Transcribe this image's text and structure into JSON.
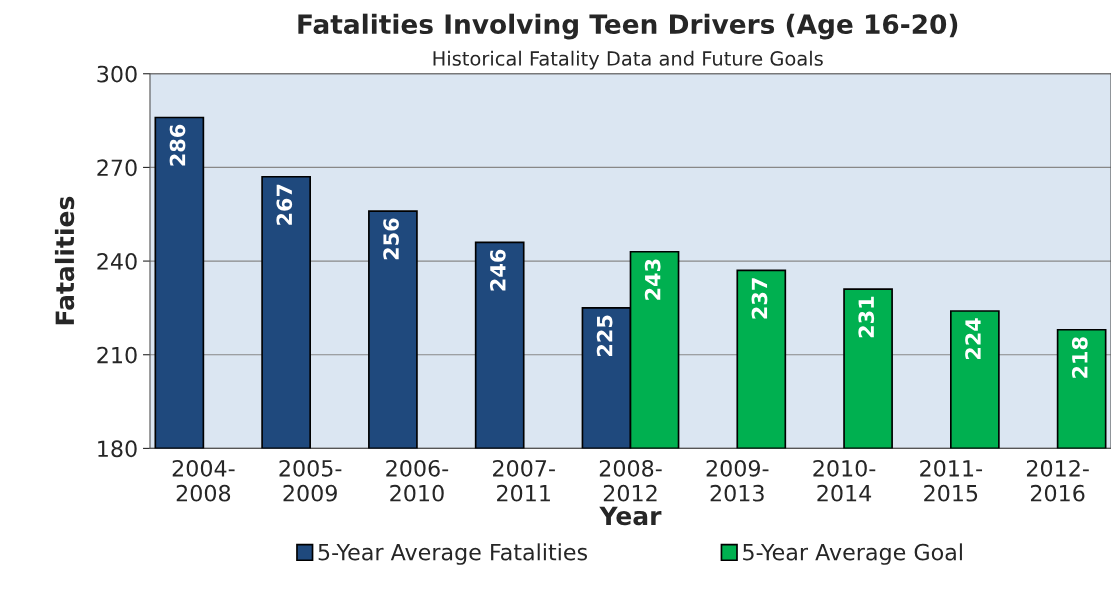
{
  "chart_data": {
    "type": "bar",
    "title": "Fatalities Involving Teen Drivers (Age 16-20)",
    "subtitle": "Historical Fatality Data and Future Goals",
    "xlabel": "Year",
    "ylabel": "Fatalities",
    "categories": [
      "2004-2008",
      "2005-2009",
      "2006-2010",
      "2007-2011",
      "2008-2012",
      "2009-2013",
      "2010-2014",
      "2011-2015",
      "2012-2016"
    ],
    "series": [
      {
        "name": "5-Year Average Fatalities",
        "color": "#1f497d",
        "values": [
          286,
          267,
          256,
          246,
          225,
          null,
          null,
          null,
          null
        ]
      },
      {
        "name": "5-Year Average Goal",
        "color": "#00b050",
        "values": [
          null,
          null,
          null,
          null,
          243,
          237,
          231,
          224,
          218
        ]
      }
    ],
    "ylim": [
      180,
      300
    ],
    "yticks": [
      180,
      210,
      240,
      270,
      300
    ],
    "grid": "y",
    "legend": "bottom",
    "data_labels": true
  }
}
